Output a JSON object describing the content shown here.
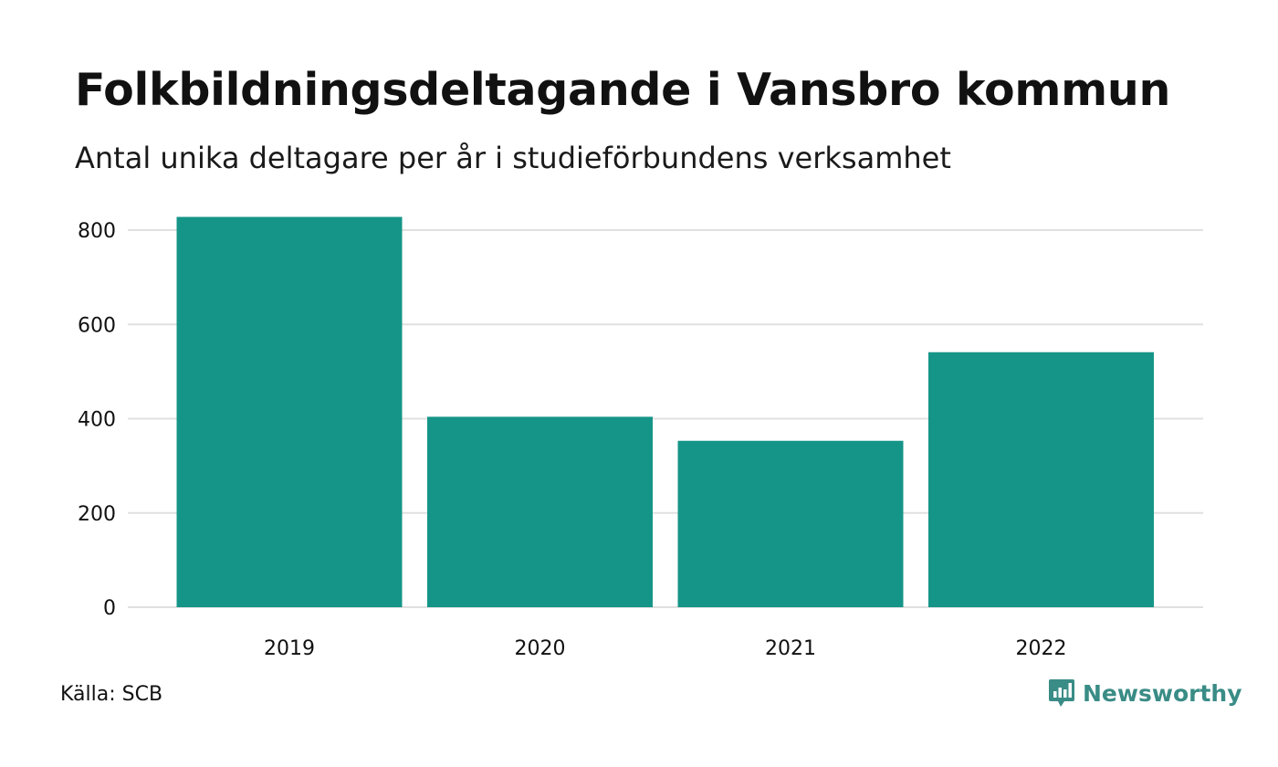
{
  "title": "Folkbildningsdeltagande i Vansbro kommun",
  "subtitle": "Antal unika deltagare per år i studieförbundens verksamhet",
  "source": "Källa: SCB",
  "brand": {
    "name": "Newsworthy",
    "icon": "newsworthy-logo-icon",
    "color": "#3a8c86"
  },
  "colors": {
    "bar": "#159588",
    "grid": "#e0e0e0",
    "text": "#111111"
  },
  "chart_data": {
    "type": "bar",
    "categories": [
      "2019",
      "2020",
      "2021",
      "2022"
    ],
    "values": [
      828,
      404,
      353,
      541
    ],
    "ylim": [
      0,
      800
    ],
    "yticks": [
      0,
      200,
      400,
      600,
      800
    ],
    "xlabel": "",
    "ylabel": "",
    "grid": true
  }
}
